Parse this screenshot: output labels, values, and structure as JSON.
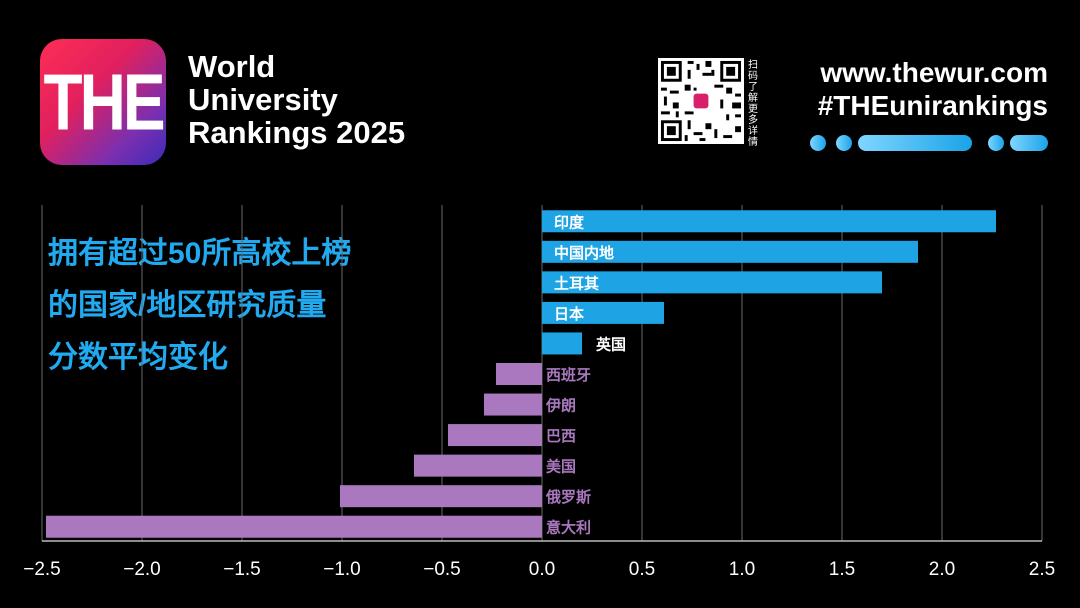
{
  "brand": {
    "logo_text": "THE",
    "title_lines": [
      "World",
      "University",
      "Rankings 2025"
    ],
    "qr_caption": "扫码了解更多详情",
    "url": "www.thewur.com",
    "hashtag": "#THEunirankings"
  },
  "headline_lines": [
    "拥有超过50所高校上榜",
    "的国家/地区研究质量",
    "分数平均变化"
  ],
  "colors": {
    "positive": "#1ea4e4",
    "negative": "#a978be",
    "accent_text": "#21aaf0"
  },
  "chart_data": {
    "type": "bar",
    "orientation": "horizontal",
    "title": "拥有超过50所高校上榜的国家/地区研究质量分数平均变化",
    "categories": [
      "印度",
      "中国内地",
      "土耳其",
      "日本",
      "英国",
      "西班牙",
      "伊朗",
      "巴西",
      "美国",
      "俄罗斯",
      "意大利"
    ],
    "values": [
      2.27,
      1.88,
      1.7,
      0.61,
      0.2,
      -0.23,
      -0.29,
      -0.47,
      -0.64,
      -1.01,
      -2.48
    ],
    "xlim": [
      -2.5,
      2.5
    ],
    "xticks": [
      -2.5,
      -2.0,
      -1.5,
      -1.0,
      -0.5,
      0.0,
      0.5,
      1.0,
      1.5,
      2.0,
      2.5
    ],
    "xtick_labels": [
      "−2.5",
      "−2.0",
      "−1.5",
      "−1.0",
      "−0.5",
      "0.0",
      "0.5",
      "1.0",
      "1.5",
      "2.0",
      "2.5"
    ],
    "grid": true,
    "xlabel": "",
    "ylabel": ""
  }
}
